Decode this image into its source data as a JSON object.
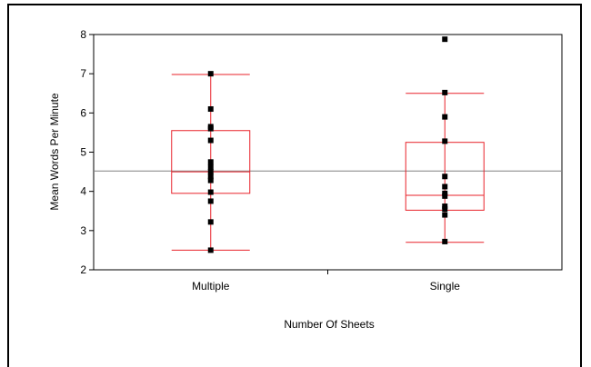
{
  "chart_data": {
    "type": "box",
    "title": "",
    "xlabel": "Number Of Sheets",
    "ylabel": "Mean Words Per Minute",
    "ylim": [
      2,
      8
    ],
    "yticks": [
      "2",
      "3",
      "4",
      "5",
      "6",
      "7",
      "8"
    ],
    "categories": [
      "Multiple",
      "Single"
    ],
    "grand_mean": 4.52,
    "groups": [
      {
        "category": "Multiple",
        "whisker_low": 2.5,
        "q1": 3.95,
        "median": 4.5,
        "q3": 5.55,
        "whisker_high": 6.98,
        "points": [
          2.5,
          3.22,
          3.75,
          3.98,
          4.28,
          4.38,
          4.5,
          4.62,
          4.75,
          5.3,
          5.6,
          5.65,
          6.1,
          7.0
        ]
      },
      {
        "category": "Single",
        "whisker_low": 2.7,
        "q1": 3.52,
        "median": 3.9,
        "q3": 5.25,
        "whisker_high": 6.5,
        "points": [
          2.72,
          3.4,
          3.55,
          3.62,
          3.88,
          3.95,
          4.12,
          4.38,
          5.28,
          5.9,
          6.52,
          7.88
        ]
      }
    ],
    "colors": {
      "box": "#e8222a",
      "mean_line": "#808080",
      "points": "#000000",
      "axes": "#000000"
    }
  }
}
